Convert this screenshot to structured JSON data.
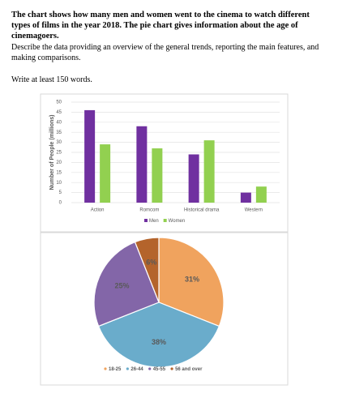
{
  "document": {
    "title": "The chart shows how many men and women went to the cinema to watch different types of films in the year 2018. The pie chart gives information about the age of cinemagoers.",
    "description": "Describe the data providing an overview of the general trends, reporting the main features, and making comparisons.",
    "instruction": "Write at least 150 words."
  },
  "chart_data": [
    {
      "type": "bar",
      "y_label": "Number of People (millions)",
      "categories": [
        "Action",
        "Romcom",
        "Historical drama",
        "Western"
      ],
      "series": [
        {
          "name": "Men",
          "color": "#7030a0",
          "values": [
            46,
            38,
            24,
            5
          ]
        },
        {
          "name": "Women",
          "color": "#92d050",
          "values": [
            29,
            27,
            31,
            8
          ]
        }
      ],
      "ylim": [
        0,
        50
      ],
      "yticks": [
        0,
        5,
        10,
        15,
        20,
        25,
        30,
        35,
        40,
        45,
        50
      ],
      "grid": true,
      "legend": "bottom"
    },
    {
      "type": "pie",
      "categories": [
        "18-25",
        "26-44",
        "45-55",
        "56 and over"
      ],
      "values": [
        31,
        38,
        25,
        6
      ],
      "value_labels": [
        "31%",
        "38%",
        "25%",
        "6%"
      ],
      "colors": [
        "#f0a35e",
        "#6aaccb",
        "#8366a8",
        "#b4642c"
      ],
      "legend": "bottom"
    }
  ]
}
